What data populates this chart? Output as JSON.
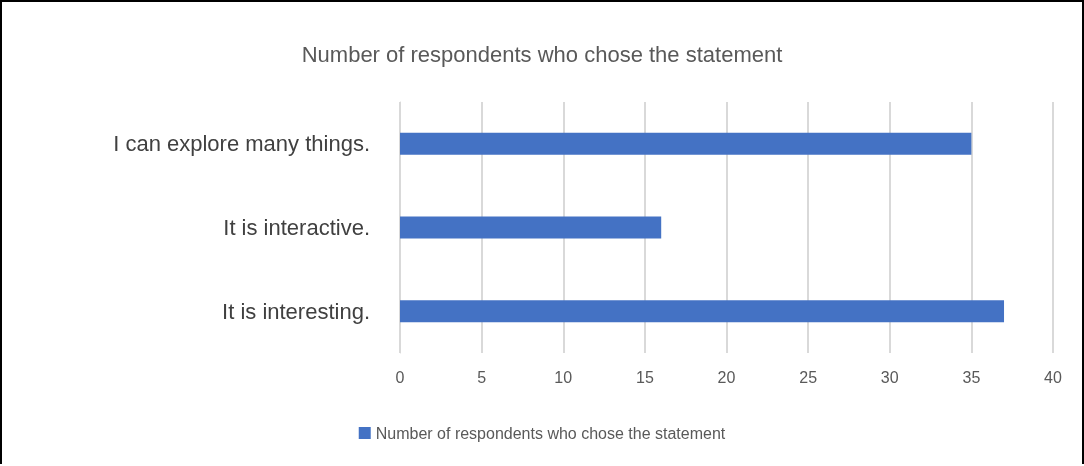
{
  "chart_data": {
    "type": "bar",
    "orientation": "horizontal",
    "title": "Number of respondents who chose the statement",
    "categories": [
      "I can explore many things.",
      "It is interactive.",
      "It is interesting."
    ],
    "series": [
      {
        "name": "Number of respondents who chose the statement",
        "color": "#4472c4",
        "values": [
          35,
          16,
          37
        ]
      }
    ],
    "xlim": [
      0,
      40
    ],
    "xticks": [
      0,
      5,
      10,
      15,
      20,
      25,
      30,
      35,
      40
    ],
    "grid": "x",
    "legend": "bottom"
  }
}
